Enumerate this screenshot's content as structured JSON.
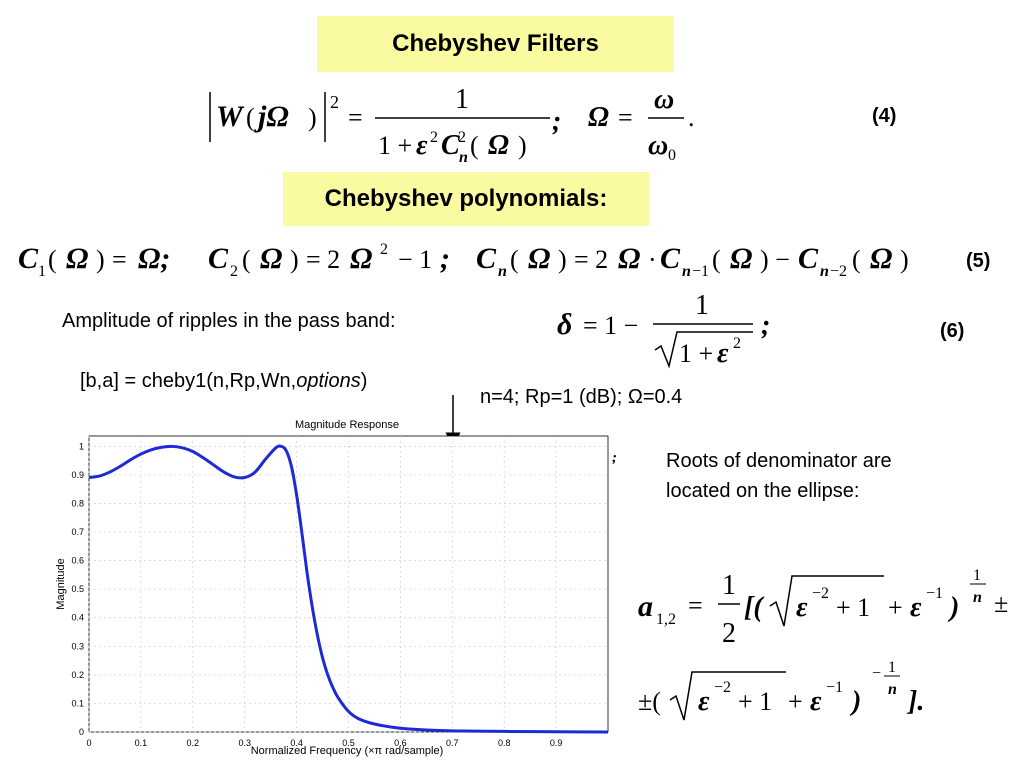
{
  "slide": {
    "title": "Chebyshev Filters",
    "subtitle": "Chebyshev polynomials:",
    "eq4_number": "(4)",
    "eq5_number": "(5)",
    "eq6_number": "(6)",
    "ripple_label": "Amplitude of ripples in the pass band:",
    "cheby_call_prefix": "[b,a] = cheby1(n,Rp,Wn,",
    "cheby_call_options": "options",
    "cheby_call_suffix": ")",
    "params": "n=4; Rp=1 (dB); Ω=0.4",
    "roots_text_line1": "Roots of denominator are",
    "roots_text_line2": "located on the ellipse:",
    "highlight_color": "#fafaa0",
    "curve_color": "#1f2ad6"
  },
  "chart_data": {
    "type": "line",
    "title": "Magnitude Response",
    "xlabel": "Normalized Frequency (×π rad/sample)",
    "ylabel": "Magnitude",
    "xlim": [
      0,
      1
    ],
    "ylim": [
      0,
      1
    ],
    "x_ticks": [
      "0",
      "0.1",
      "0.2",
      "0.3",
      "0.4",
      "0.5",
      "0.6",
      "0.7",
      "0.8",
      "0.9"
    ],
    "y_ticks": [
      "0",
      "0.1",
      "0.2",
      "0.3",
      "0.4",
      "0.5",
      "0.6",
      "0.7",
      "0.8",
      "0.9",
      "1"
    ],
    "grid": true,
    "series": [
      {
        "x": [
          0,
          0.02,
          0.04,
          0.06,
          0.08,
          0.1,
          0.12,
          0.14,
          0.16,
          0.18,
          0.2,
          0.22,
          0.24,
          0.26,
          0.28,
          0.3,
          0.32,
          0.34,
          0.36,
          0.37,
          0.38,
          0.39,
          0.4,
          0.41,
          0.42,
          0.43,
          0.44,
          0.45,
          0.46,
          0.47,
          0.48,
          0.5,
          0.52,
          0.55,
          0.6,
          0.65,
          0.7,
          0.8,
          0.9,
          1.0
        ],
        "values": [
          0.891,
          0.896,
          0.91,
          0.93,
          0.953,
          0.973,
          0.988,
          0.997,
          1.0,
          0.995,
          0.982,
          0.96,
          0.935,
          0.91,
          0.893,
          0.891,
          0.91,
          0.955,
          0.995,
          1.0,
          0.985,
          0.93,
          0.83,
          0.7,
          0.56,
          0.44,
          0.34,
          0.26,
          0.2,
          0.155,
          0.12,
          0.072,
          0.046,
          0.028,
          0.013,
          0.007,
          0.004,
          0.002,
          0.001,
          0.0
        ]
      }
    ]
  }
}
